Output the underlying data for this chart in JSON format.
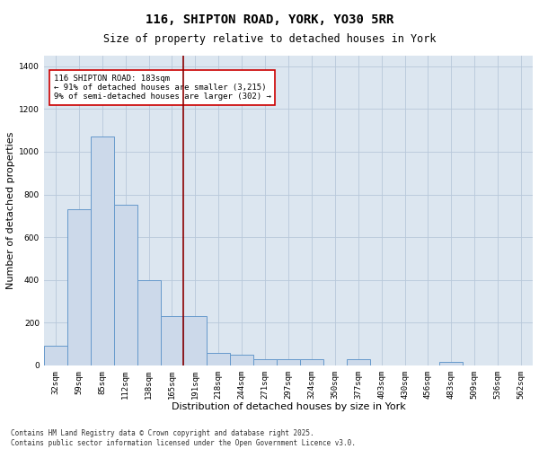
{
  "title_line1": "116, SHIPTON ROAD, YORK, YO30 5RR",
  "title_line2": "Size of property relative to detached houses in York",
  "xlabel": "Distribution of detached houses by size in York",
  "ylabel": "Number of detached properties",
  "categories": [
    "32sqm",
    "59sqm",
    "85sqm",
    "112sqm",
    "138sqm",
    "165sqm",
    "191sqm",
    "218sqm",
    "244sqm",
    "271sqm",
    "297sqm",
    "324sqm",
    "350sqm",
    "377sqm",
    "403sqm",
    "430sqm",
    "456sqm",
    "483sqm",
    "509sqm",
    "536sqm",
    "562sqm"
  ],
  "values": [
    90,
    730,
    1070,
    750,
    400,
    230,
    230,
    60,
    50,
    30,
    30,
    30,
    0,
    30,
    0,
    0,
    0,
    15,
    0,
    0,
    0
  ],
  "bar_color": "#ccd9ea",
  "bar_edge_color": "#6699cc",
  "vline_x_position": 5.5,
  "vline_color": "#8b0000",
  "annotation_text": "116 SHIPTON ROAD: 183sqm\n← 91% of detached houses are smaller (3,215)\n9% of semi-detached houses are larger (302) →",
  "annotation_box_color": "white",
  "annotation_box_edge": "#cc0000",
  "ylim": [
    0,
    1450
  ],
  "yticks": [
    0,
    200,
    400,
    600,
    800,
    1000,
    1200,
    1400
  ],
  "grid_color": "#b8c8da",
  "background_color": "#dce6f0",
  "footer_line1": "Contains HM Land Registry data © Crown copyright and database right 2025.",
  "footer_line2": "Contains public sector information licensed under the Open Government Licence v3.0.",
  "title_fontsize": 10,
  "subtitle_fontsize": 8.5,
  "tick_fontsize": 6.5,
  "label_fontsize": 8,
  "annot_fontsize": 6.5
}
